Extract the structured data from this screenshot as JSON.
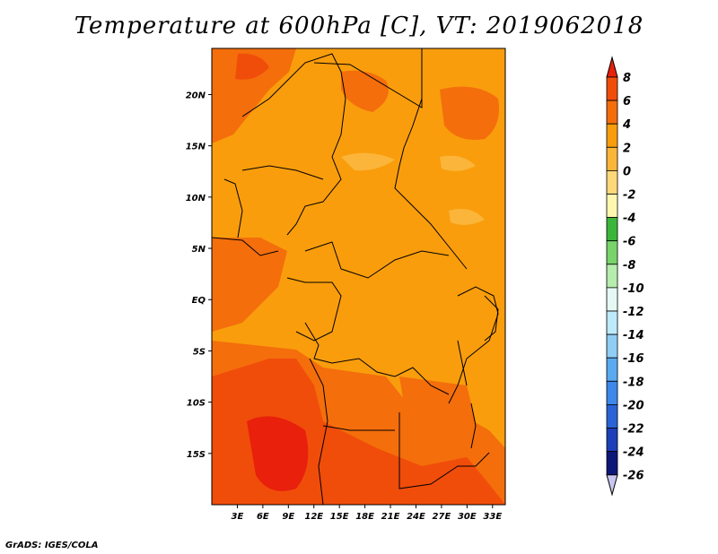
{
  "title": "Temperature at 600hPa [C], VT: 2019062018",
  "credit": "GrADS: IGES/COLA",
  "map": {
    "lat_labels": [
      "20N",
      "15N",
      "10N",
      "5N",
      "EQ",
      "5S",
      "10S",
      "15S"
    ],
    "lon_labels": [
      "3E",
      "6E",
      "9E",
      "12E",
      "15E",
      "18E",
      "21E",
      "24E",
      "27E",
      "30E",
      "33E"
    ],
    "lat_values": [
      20,
      15,
      10,
      5,
      0,
      -5,
      -10,
      -15
    ],
    "lon_values": [
      3,
      6,
      9,
      12,
      15,
      18,
      21,
      24,
      27,
      30,
      33
    ],
    "lat_range": [
      -20,
      24.5
    ],
    "lon_range": [
      0,
      34.5
    ],
    "field": "temperature",
    "level": "600hPa",
    "units": "C"
  },
  "colorbar": {
    "labels": [
      "8",
      "6",
      "4",
      "2",
      "0",
      "-2",
      "-4",
      "-6",
      "-8",
      "-10",
      "-12",
      "-14",
      "-16",
      "-18",
      "-20",
      "-22",
      "-24",
      "-26"
    ],
    "colors": [
      "#e8200c",
      "#f04d0a",
      "#f46e0c",
      "#f99d0c",
      "#fbb53a",
      "#fdd87a",
      "#fff7b0",
      "#3cb63a",
      "#78d36b",
      "#b6ecac",
      "#e6f8f4",
      "#bdeafb",
      "#8fcdf5",
      "#5aaaf0",
      "#3d88ea",
      "#2a63d6",
      "#1d3fb8",
      "#0c1878",
      "#c6c6f0"
    ]
  }
}
